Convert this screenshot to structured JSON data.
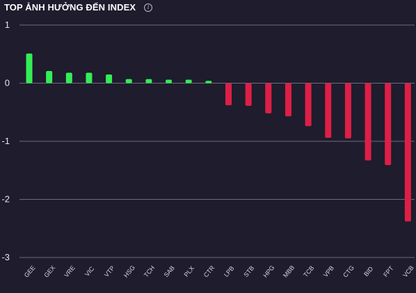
{
  "header": {
    "title": "TOP ẢNH HƯỞNG ĐẾN INDEX",
    "info_icon": "info-icon",
    "info_glyph": "i"
  },
  "colors": {
    "positive": "#33ee55",
    "negative": "#dd1f45",
    "grid": "#6e6c7c",
    "background": "#1e1c2d"
  },
  "chart_data": {
    "type": "bar",
    "title": "TOP ẢNH HƯỞNG ĐẾN INDEX",
    "xlabel": "",
    "ylabel": "",
    "ylim": [
      -3,
      1
    ],
    "yticks": [
      1,
      0,
      -1,
      -2,
      -3
    ],
    "grid": true,
    "categories": [
      "GEE",
      "GEX",
      "VRE",
      "VIC",
      "VTP",
      "HSG",
      "TCH",
      "SAB",
      "PLX",
      "CTR",
      "LPB",
      "STB",
      "HPG",
      "MBB",
      "TCB",
      "VPB",
      "CTG",
      "BID",
      "FPT",
      "VCB"
    ],
    "values": [
      0.51,
      0.21,
      0.18,
      0.18,
      0.15,
      0.07,
      0.07,
      0.06,
      0.06,
      0.04,
      -0.38,
      -0.39,
      -0.52,
      -0.57,
      -0.74,
      -0.94,
      -0.95,
      -1.33,
      -1.41,
      -2.38
    ]
  }
}
